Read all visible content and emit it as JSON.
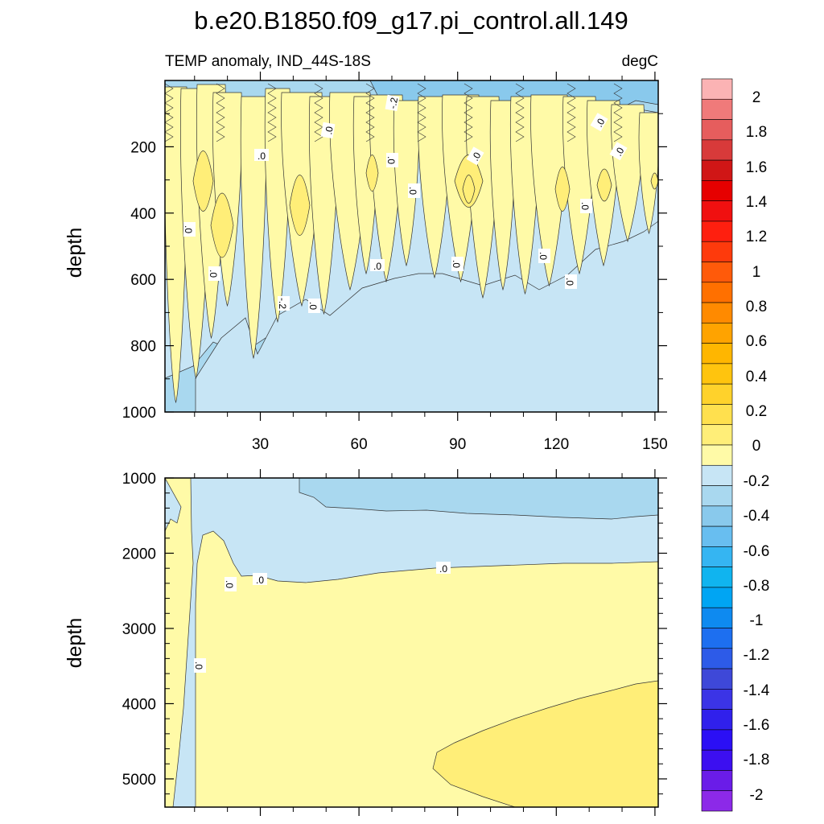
{
  "chart_data": {
    "type": "heatmap",
    "title": "b.e20.B1850.f09_g17.pi_control.all.149",
    "subtitle_left": "TEMP anomaly, IND_44S-18S",
    "subtitle_right": "degC",
    "upper_panel": {
      "ylabel": "depth",
      "ylim": [
        1000,
        0
      ],
      "xlim": [
        1,
        151
      ],
      "yticks": [
        200,
        400,
        600,
        800,
        1000
      ],
      "xticks": [
        30,
        60,
        90,
        120,
        150
      ],
      "contour_labels": [
        "-.2",
        ".0",
        ".0",
        ".0",
        ".0",
        "-.2",
        ".0",
        ".0",
        ".0",
        ".0",
        ".0",
        ".0",
        ".0",
        ".0",
        ".0",
        ".0",
        ".0",
        ".0"
      ]
    },
    "lower_panel": {
      "ylabel": "depth",
      "ylim": [
        5375,
        1000
      ],
      "xlim": [
        1,
        151
      ],
      "yticks": [
        1000,
        2000,
        3000,
        4000,
        5000
      ],
      "contour_labels": [
        ".0",
        ".0",
        ".0",
        ".0"
      ]
    },
    "colorbar": {
      "levels": [
        "2",
        "1.8",
        "1.6",
        "1.4",
        "1.2",
        "1",
        "0.8",
        "0.6",
        "0.4",
        "0.2",
        "0",
        "-0.2",
        "-0.4",
        "-0.6",
        "-0.8",
        "-1",
        "-1.2",
        "-1.4",
        "-1.6",
        "-1.8",
        "-2"
      ],
      "colors": [
        "#fbb3b4",
        "#f07a7a",
        "#e65d5d",
        "#d83a3a",
        "#d01616",
        "#e60000",
        "#f01010",
        "#fe1f0f",
        "#fe3a0c",
        "#ff5a0a",
        "#ff7000",
        "#ff8a00",
        "#ffa300",
        "#ffb600",
        "#ffc40e",
        "#ffd22b",
        "#ffe04e",
        "#ffee78",
        "#fffaa7",
        "#c7e5f5",
        "#a9d8ef",
        "#89c9ec",
        "#68bef0",
        "#35b5f2",
        "#10b4ef",
        "#00a5f3",
        "#0e8af0",
        "#1d6ff0",
        "#2d5be8",
        "#3e48d8",
        "#3b34e6",
        "#3020ec",
        "#2b0ff5",
        "#3c0ff0",
        "#6a1ce8",
        "#8c29e8"
      ]
    },
    "fill_colors": {
      "neg04": "#89c9ec",
      "neg02": "#a9d8ef",
      "neg00": "#c7e5f5",
      "pos00": "#fffaa7",
      "pos02": "#ffee78"
    }
  }
}
